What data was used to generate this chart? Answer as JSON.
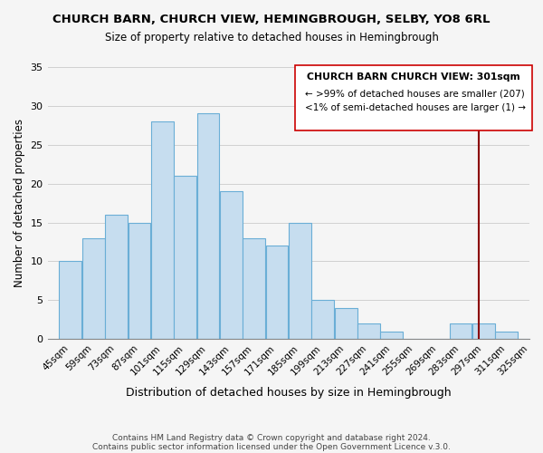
{
  "title": "CHURCH BARN, CHURCH VIEW, HEMINGBROUGH, SELBY, YO8 6RL",
  "subtitle": "Size of property relative to detached houses in Hemingbrough",
  "xlabel": "Distribution of detached houses by size in Hemingbrough",
  "ylabel": "Number of detached properties",
  "bar_labels": [
    "45sqm",
    "59sqm",
    "73sqm",
    "87sqm",
    "101sqm",
    "115sqm",
    "129sqm",
    "143sqm",
    "157sqm",
    "171sqm",
    "185sqm",
    "199sqm",
    "213sqm",
    "227sqm",
    "241sqm",
    "255sqm",
    "269sqm",
    "283sqm",
    "297sqm",
    "311sqm",
    "325sqm"
  ],
  "bar_values": [
    10,
    13,
    16,
    15,
    28,
    21,
    29,
    19,
    13,
    12,
    15,
    5,
    4,
    2,
    1,
    0,
    0,
    2,
    2,
    1,
    0
  ],
  "bar_color": "#c6ddef",
  "bar_edge_color": "#6aaed6",
  "grid_color": "#d0d0d0",
  "vline_color": "#8b0000",
  "annotation_title": "CHURCH BARN CHURCH VIEW: 301sqm",
  "annotation_line1": "← >99% of detached houses are smaller (207)",
  "annotation_line2": "<1% of semi-detached houses are larger (1) →",
  "ylim": [
    0,
    35
  ],
  "yticks": [
    0,
    5,
    10,
    15,
    20,
    25,
    30,
    35
  ],
  "footer_line1": "Contains HM Land Registry data © Crown copyright and database right 2024.",
  "footer_line2": "Contains public sector information licensed under the Open Government Licence v.3.0.",
  "bin_edges": [
    45,
    59,
    73,
    87,
    101,
    115,
    129,
    143,
    157,
    171,
    185,
    199,
    213,
    227,
    241,
    255,
    269,
    283,
    297,
    311,
    325,
    339
  ],
  "bg_color": "#f5f5f5"
}
